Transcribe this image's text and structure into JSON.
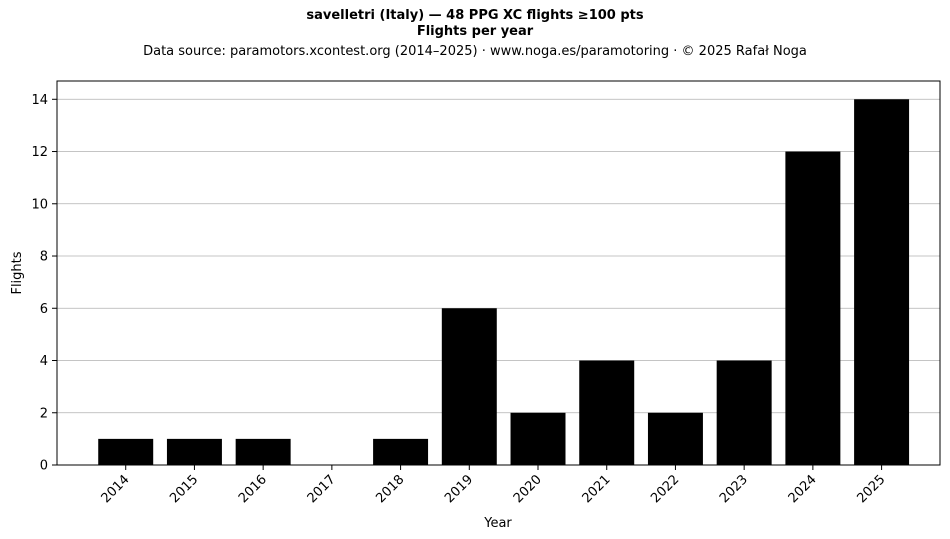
{
  "chart_data": {
    "type": "bar",
    "title": "savelletri (Italy)  —  48 PPG XC flights ≥100 pts",
    "subtitle": "Flights per year",
    "source_line": "Data source: paramotors.xcontest.org (2014–2025)  ·  www.noga.es/paramotoring  ·  © 2025 Rafał Noga",
    "xlabel": "Year",
    "ylabel": "Flights",
    "categories": [
      "2014",
      "2015",
      "2016",
      "2017",
      "2018",
      "2019",
      "2020",
      "2021",
      "2022",
      "2023",
      "2024",
      "2025"
    ],
    "values": [
      1,
      1,
      1,
      0,
      1,
      6,
      2,
      4,
      2,
      4,
      12,
      14
    ],
    "ylim": [
      0,
      14.7
    ],
    "yticks": [
      0,
      2,
      4,
      6,
      8,
      10,
      12,
      14
    ],
    "bar_color": "#000000",
    "grid": "horizontal"
  }
}
